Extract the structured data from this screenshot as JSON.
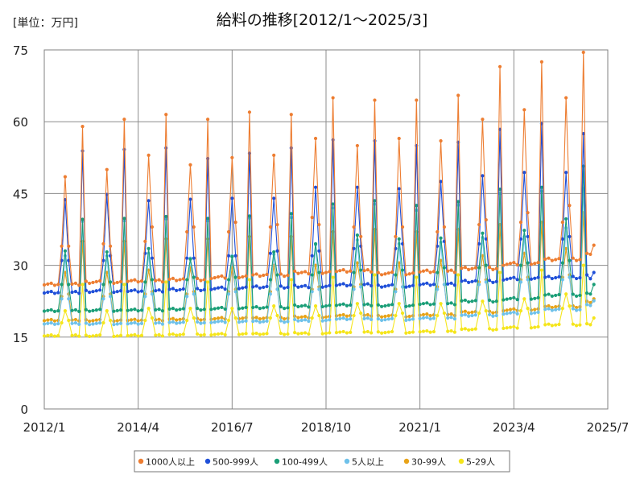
{
  "unit_label": "[単位：万円]",
  "chart_data": {
    "type": "line",
    "title": "給料の推移[2012/1～2025/3]",
    "xlabel": "",
    "ylabel": "",
    "ylim": [
      0,
      75
    ],
    "yticks": [
      0,
      15,
      30,
      45,
      60,
      75
    ],
    "xlim": [
      "2012-01",
      "2025-07"
    ],
    "xticks": [
      "2012/1",
      "2014/4",
      "2016/7",
      "2018/10",
      "2021/1",
      "2023/4",
      "2025/7"
    ],
    "grid": true,
    "legend_position": "bottom",
    "start_month": "2012-01",
    "series": [
      {
        "name": "1000人以上",
        "color": "#ed7d31",
        "baseline_by_year": {
          "2012": 26.0,
          "2013": 26.5,
          "2014": 26.8,
          "2015": 27.0,
          "2016": 27.5,
          "2017": 28.0,
          "2018": 28.5,
          "2019": 28.8,
          "2020": 28.3,
          "2021": 28.8,
          "2022": 29.3,
          "2023": 30.3,
          "2024": 31.3,
          "2025": 32.5
        },
        "june_by_year": {
          "2012": 34.0,
          "2013": 34.5,
          "2014": 35.0,
          "2015": 37.0,
          "2016": 37.0,
          "2017": 38.0,
          "2018": 40.0,
          "2019": 38.0,
          "2020": 36.0,
          "2021": 37.0,
          "2022": 38.5,
          "2023": 39.0,
          "2024": 39.0
        },
        "july_by_year": {
          "2012": 48.5,
          "2013": 50.0,
          "2014": 53.0,
          "2015": 51.0,
          "2016": 52.5,
          "2017": 53.0,
          "2018": 56.5,
          "2019": 55.0,
          "2020": 56.5,
          "2021": 56.0,
          "2022": 60.5,
          "2023": 62.5,
          "2024": 65.0
        },
        "august_by_year": {
          "2012": 34.0,
          "2013": 34.0,
          "2014": 38.0,
          "2015": 38.0,
          "2016": 39.0,
          "2017": 38.5,
          "2018": 38.5,
          "2019": 36.0,
          "2020": 38.0,
          "2021": 38.0,
          "2022": 39.5,
          "2023": 41.0,
          "2024": 42.5
        },
        "december_by_year": {
          "2012": 59.0,
          "2013": 60.5,
          "2014": 61.5,
          "2015": 60.5,
          "2016": 62.0,
          "2017": 61.5,
          "2018": 65.0,
          "2019": 64.5,
          "2020": 64.5,
          "2021": 65.5,
          "2022": 71.5,
          "2023": 72.5,
          "2024": 74.5
        },
        "last_values": [
          32.5,
          32.3,
          34.2
        ]
      },
      {
        "name": "500-999人",
        "color": "#1f4fd8",
        "baseline_by_year": {
          "2012": 24.3,
          "2013": 24.6,
          "2014": 24.7,
          "2015": 24.9,
          "2016": 25.2,
          "2017": 25.5,
          "2018": 25.6,
          "2019": 25.9,
          "2020": 25.7,
          "2021": 26.1,
          "2022": 26.6,
          "2023": 27.2,
          "2024": 27.5,
          "2025": 27.8
        },
        "june_by_year": {
          "2012": 31.0,
          "2013": 31.0,
          "2014": 32.5,
          "2015": 31.5,
          "2016": 32.0,
          "2017": 32.5,
          "2018": 32.0,
          "2019": 33.5,
          "2020": 33.5,
          "2021": 34.0,
          "2022": 34.5,
          "2023": 35.5,
          "2024": 35.5
        },
        "july_by_year": {
          "2012": 43.7,
          "2013": 44.8,
          "2014": 43.5,
          "2015": 43.8,
          "2016": 44.0,
          "2017": 44.0,
          "2018": 46.3,
          "2019": 46.3,
          "2020": 46.0,
          "2021": 47.5,
          "2022": 48.7,
          "2023": 49.4,
          "2024": 49.4
        },
        "august_by_year": {
          "2012": 31.0,
          "2013": 32.0,
          "2014": 31.5,
          "2015": 31.5,
          "2016": 32.0,
          "2017": 33.0,
          "2018": 33.0,
          "2019": 34.0,
          "2020": 34.5,
          "2021": 35.0,
          "2022": 35.5,
          "2023": 36.0,
          "2024": 36.0
        },
        "december_by_year": {
          "2012": 53.9,
          "2013": 54.2,
          "2014": 54.5,
          "2015": 52.3,
          "2016": 53.4,
          "2017": 54.5,
          "2018": 56.2,
          "2019": 56.0,
          "2020": 55.0,
          "2021": 55.7,
          "2022": 58.4,
          "2023": 59.6,
          "2024": 57.5
        },
        "last_values": [
          28.0,
          27.2,
          28.5
        ]
      },
      {
        "name": "100-499人",
        "color": "#1a9e77",
        "baseline_by_year": {
          "2012": 20.5,
          "2013": 20.6,
          "2014": 20.7,
          "2015": 20.8,
          "2016": 21.0,
          "2017": 21.2,
          "2018": 21.5,
          "2019": 21.7,
          "2020": 21.6,
          "2021": 22.0,
          "2022": 22.5,
          "2023": 23.0,
          "2024": 23.8,
          "2025": 24.5
        },
        "june_by_year": {
          "2012": 26.0,
          "2013": 26.0,
          "2014": 26.5,
          "2015": 27.0,
          "2016": 27.0,
          "2017": 27.0,
          "2018": 28.0,
          "2019": 28.5,
          "2020": 28.0,
          "2021": 28.5,
          "2022": 29.5,
          "2023": 30.0,
          "2024": 30.5
        },
        "july_by_year": {
          "2012": 33.0,
          "2013": 32.8,
          "2014": 33.5,
          "2015": 31.3,
          "2016": 31.8,
          "2017": 32.8,
          "2018": 34.5,
          "2019": 36.3,
          "2020": 35.5,
          "2021": 35.7,
          "2022": 36.7,
          "2023": 37.3,
          "2024": 39.7
        },
        "august_by_year": {
          "2012": 26.0,
          "2013": 26.5,
          "2014": 27.0,
          "2015": 27.5,
          "2016": 27.5,
          "2017": 28.0,
          "2018": 28.5,
          "2019": 29.0,
          "2020": 29.0,
          "2021": 29.5,
          "2022": 30.0,
          "2023": 30.5,
          "2024": 31.0
        },
        "december_by_year": {
          "2012": 39.6,
          "2013": 39.8,
          "2014": 40.2,
          "2015": 39.8,
          "2016": 40.3,
          "2017": 40.8,
          "2018": 42.8,
          "2019": 43.5,
          "2020": 42.5,
          "2021": 43.3,
          "2022": 45.9,
          "2023": 46.3,
          "2024": 50.7
        },
        "last_values": [
          24.2,
          24.0,
          26.0
        ]
      },
      {
        "name": "5人以上",
        "color": "#6ec1ea",
        "baseline_by_year": {
          "2012": 17.8,
          "2013": 17.8,
          "2014": 17.9,
          "2015": 18.0,
          "2016": 18.2,
          "2017": 18.3,
          "2018": 18.5,
          "2019": 18.8,
          "2020": 18.7,
          "2021": 19.0,
          "2022": 19.5,
          "2023": 20.0,
          "2024": 20.8,
          "2025": 21.5
        },
        "june_by_year": {
          "2012": 23.0,
          "2013": 23.0,
          "2014": 23.5,
          "2015": 23.5,
          "2016": 24.0,
          "2017": 24.0,
          "2018": 24.5,
          "2019": 25.0,
          "2020": 24.5,
          "2021": 25.0,
          "2022": 26.0,
          "2023": 26.5,
          "2024": 27.0
        },
        "july_by_year": {
          "2012": 32.0,
          "2013": 32.0,
          "2014": 32.5,
          "2015": 31.5,
          "2016": 32.0,
          "2017": 32.3,
          "2018": 34.3,
          "2019": 35.3,
          "2020": 34.5,
          "2021": 34.8,
          "2022": 35.8,
          "2023": 36.0,
          "2024": 37.8
        },
        "august_by_year": {
          "2012": 23.0,
          "2013": 23.5,
          "2014": 24.0,
          "2015": 24.0,
          "2016": 24.5,
          "2017": 25.0,
          "2018": 25.0,
          "2019": 25.5,
          "2020": 25.5,
          "2021": 26.0,
          "2022": 26.5,
          "2023": 27.0,
          "2024": 27.5
        },
        "december_by_year": {
          "2012": 39.2,
          "2013": 39.3,
          "2014": 39.7,
          "2015": 39.3,
          "2016": 39.9,
          "2017": 40.0,
          "2018": 42.0,
          "2019": 42.8,
          "2020": 41.5,
          "2021": 42.6,
          "2022": 45.0,
          "2023": 45.5,
          "2024": 46.0
        },
        "last_values": [
          21.8,
          21.6,
          22.6
        ]
      },
      {
        "name": "30-99人",
        "color": "#e8a317",
        "baseline_by_year": {
          "2012": 18.5,
          "2013": 18.5,
          "2014": 18.6,
          "2015": 18.7,
          "2016": 18.9,
          "2017": 19.0,
          "2018": 19.2,
          "2019": 19.5,
          "2020": 19.4,
          "2021": 19.7,
          "2022": 20.2,
          "2023": 20.7,
          "2024": 21.4,
          "2025": 22.0
        },
        "june_by_year": {
          "2012": 23.5,
          "2013": 23.5,
          "2014": 24.0,
          "2015": 24.0,
          "2016": 24.5,
          "2017": 24.5,
          "2018": 25.0,
          "2019": 25.5,
          "2020": 25.0,
          "2021": 25.5,
          "2022": 26.5,
          "2023": 27.0,
          "2024": 27.5
        },
        "july_by_year": {
          "2012": 28.5,
          "2013": 28.5,
          "2014": 29.0,
          "2015": 29.5,
          "2016": 29.5,
          "2017": 30.0,
          "2018": 30.0,
          "2019": 30.5,
          "2020": 30.5,
          "2021": 31.0,
          "2022": 32.0,
          "2023": 32.5,
          "2024": 33.5
        },
        "august_by_year": {
          "2012": 24.0,
          "2013": 24.0,
          "2014": 24.5,
          "2015": 24.5,
          "2016": 25.0,
          "2017": 25.0,
          "2018": 25.5,
          "2019": 26.0,
          "2020": 25.5,
          "2021": 26.0,
          "2022": 27.0,
          "2023": 27.5,
          "2024": 28.0
        },
        "december_by_year": {
          "2012": 35.0,
          "2013": 35.0,
          "2014": 35.5,
          "2015": 35.5,
          "2016": 36.0,
          "2017": 36.0,
          "2018": 37.0,
          "2019": 37.5,
          "2020": 37.0,
          "2021": 37.5,
          "2022": 38.5,
          "2023": 39.0,
          "2024": 41.0
        },
        "last_values": [
          22.5,
          22.2,
          23.0
        ]
      },
      {
        "name": "5-29人",
        "color": "#f5e51b",
        "baseline_by_year": {
          "2012": 15.3,
          "2013": 15.3,
          "2014": 15.4,
          "2015": 15.5,
          "2016": 15.6,
          "2017": 15.7,
          "2018": 15.8,
          "2019": 16.0,
          "2020": 16.0,
          "2021": 16.2,
          "2022": 16.6,
          "2023": 17.0,
          "2024": 17.6,
          "2025": 18.0
        },
        "june_by_year": {
          "2012": 18.0,
          "2013": 18.0,
          "2014": 18.5,
          "2015": 18.5,
          "2016": 18.5,
          "2017": 19.0,
          "2018": 19.0,
          "2019": 19.5,
          "2020": 19.5,
          "2021": 19.5,
          "2022": 20.0,
          "2023": 20.5,
          "2024": 21.0
        },
        "july_by_year": {
          "2012": 20.5,
          "2013": 20.5,
          "2014": 21.0,
          "2015": 21.0,
          "2016": 21.0,
          "2017": 21.5,
          "2018": 21.5,
          "2019": 22.0,
          "2020": 22.0,
          "2021": 22.0,
          "2022": 22.5,
          "2023": 23.0,
          "2024": 24.0
        },
        "august_by_year": {
          "2012": 18.5,
          "2013": 18.5,
          "2014": 19.0,
          "2015": 19.0,
          "2016": 19.0,
          "2017": 19.5,
          "2018": 19.5,
          "2019": 20.0,
          "2020": 20.0,
          "2021": 20.0,
          "2022": 20.5,
          "2023": 21.0,
          "2024": 21.5
        },
        "december_by_year": {
          "2012": 26.0,
          "2013": 26.0,
          "2014": 26.5,
          "2015": 26.5,
          "2016": 27.0,
          "2017": 27.0,
          "2018": 27.5,
          "2019": 28.0,
          "2020": 27.5,
          "2021": 28.0,
          "2022": 28.5,
          "2023": 29.0,
          "2024": 30.0
        },
        "last_values": [
          17.8,
          17.6,
          19.0
        ]
      }
    ]
  }
}
